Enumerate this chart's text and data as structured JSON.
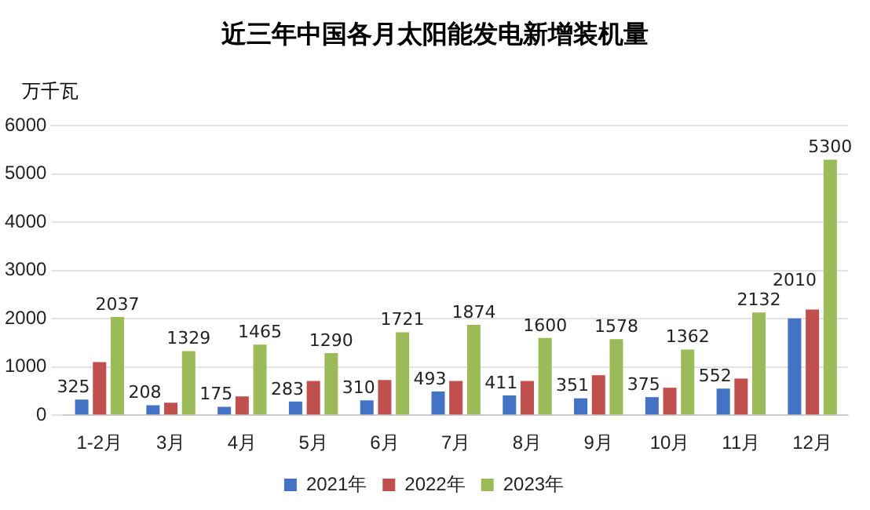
{
  "chart_data": {
    "type": "bar",
    "title": "近三年中国各月太阳能发电新增装机量",
    "ylabel": "万千瓦",
    "categories": [
      "1-2月",
      "3月",
      "4月",
      "5月",
      "6月",
      "7月",
      "8月",
      "9月",
      "10月",
      "11月",
      "12月"
    ],
    "series": [
      {
        "name": "2021年",
        "color": "#4472c4",
        "values": [
          325,
          208,
          175,
          283,
          310,
          493,
          411,
          351,
          375,
          552,
          2010
        ],
        "value_labels": [
          "325",
          "208",
          "175",
          "283",
          "310",
          "493",
          "411",
          "351",
          "375",
          "552",
          "2010"
        ]
      },
      {
        "name": "2022年",
        "color": "#c0504d",
        "values": [
          1100,
          260,
          390,
          710,
          730,
          710,
          710,
          830,
          570,
          760,
          2190
        ]
      },
      {
        "name": "2023年",
        "color": "#9bbb59",
        "values": [
          2037,
          1329,
          1465,
          1290,
          1721,
          1874,
          1600,
          1578,
          1362,
          2132,
          5300
        ],
        "value_labels": [
          "2037",
          "1329",
          "1465",
          "1290",
          "1721",
          "1874",
          "1600",
          "1578",
          "1362",
          "2132",
          "5300"
        ]
      }
    ],
    "ylim": [
      0,
      6000
    ],
    "yticks": [
      0,
      1000,
      2000,
      3000,
      4000,
      5000,
      6000
    ],
    "grid": "y",
    "legend": "bottom"
  }
}
